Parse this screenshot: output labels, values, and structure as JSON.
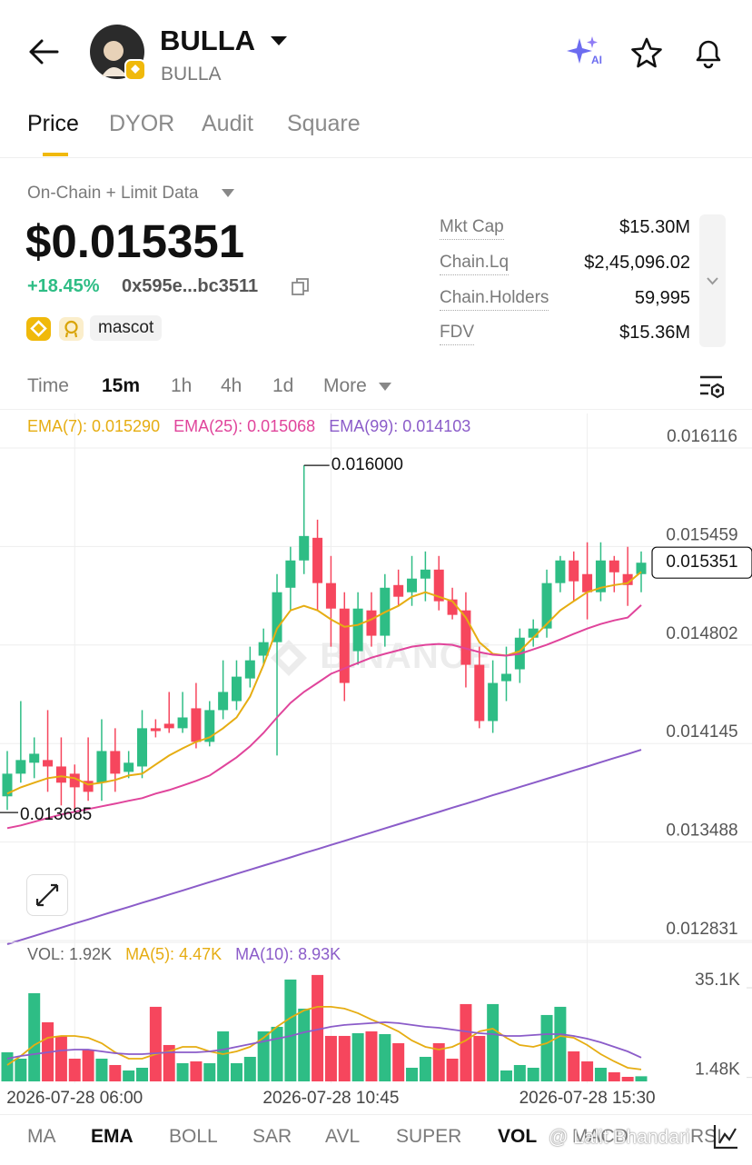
{
  "header": {
    "title": "BULLA",
    "subtitle": "BULLA"
  },
  "tabs": [
    "Price",
    "DYOR",
    "Audit",
    "Square"
  ],
  "source": "On-Chain + Limit Data",
  "price": "$0.015351",
  "change": "+18.45%",
  "address": "0x595e...bc3511",
  "tag": "mascot",
  "stats": [
    {
      "label": "Mkt Cap",
      "value": "$15.30M"
    },
    {
      "label": "Chain.Lq",
      "value": "$2,45,096.02"
    },
    {
      "label": "Chain.Holders",
      "value": "59,995"
    },
    {
      "label": "FDV",
      "value": "$15.36M"
    }
  ],
  "intervals": [
    "Time",
    "15m",
    "1h",
    "4h",
    "1d",
    "More"
  ],
  "indicators": [
    "MA",
    "EMA",
    "BOLL",
    "SAR",
    "AVL",
    "SUPER",
    "VOL",
    "MACD",
    "RSI"
  ],
  "watermark": "BINANCE",
  "credit": "@ Lalit Bhandari",
  "chart_data": [
    {
      "type": "candlestick",
      "up_color": "#2ebd85",
      "down_color": "#f6465d",
      "categories": [
        null,
        null,
        null,
        null,
        null,
        "2026-07-28 06:00",
        null,
        null,
        null,
        null,
        null,
        null,
        null,
        null,
        null,
        null,
        null,
        null,
        null,
        null,
        null,
        null,
        null,
        null,
        "2026-07-28 10:45",
        null,
        null,
        null,
        null,
        null,
        null,
        null,
        null,
        null,
        null,
        null,
        null,
        null,
        null,
        null,
        null,
        null,
        null,
        "2026-07-28 15:30",
        null,
        null,
        null,
        null
      ],
      "open": [
        0.013793,
        0.013944,
        0.014017,
        0.014035,
        0.013992,
        0.013944,
        0.013896,
        0.013884,
        0.014095,
        0.013956,
        0.013992,
        0.014247,
        0.014277,
        0.014247,
        0.01438,
        0.014156,
        0.014368,
        0.014428,
        0.014579,
        0.014731,
        0.014821,
        0.015184,
        0.015366,
        0.015517,
        0.015215,
        0.015045,
        0.014761,
        0.015033,
        0.014864,
        0.015202,
        0.015154,
        0.015245,
        0.015305,
        0.015106,
        0.015033,
        0.01467,
        0.014295,
        0.014561,
        0.01464,
        0.014851,
        0.014912,
        0.015215,
        0.015366,
        0.015275,
        0.015154,
        0.015366,
        0.015275,
        0.015275
      ],
      "high": [
        0.014095,
        0.014428,
        0.014186,
        0.014368,
        0.014186,
        0.014005,
        0.014186,
        0.014307,
        0.014247,
        0.014095,
        0.014368,
        0.014307,
        0.014489,
        0.014489,
        0.014549,
        0.014428,
        0.0147,
        0.0147,
        0.014791,
        0.014912,
        0.015275,
        0.015457,
        0.016,
        0.015638,
        0.015396,
        0.015154,
        0.015154,
        0.015154,
        0.015275,
        0.015305,
        0.015396,
        0.015426,
        0.015396,
        0.015184,
        0.015154,
        0.014791,
        0.0147,
        0.014791,
        0.014912,
        0.014973,
        0.015305,
        0.015396,
        0.015426,
        0.015487,
        0.015487,
        0.015396,
        0.015457,
        0.015426
      ],
      "low": [
        0.013702,
        0.013884,
        0.013914,
        0.013823,
        0.013732,
        0.013685,
        0.013763,
        0.013763,
        0.013823,
        0.013914,
        0.013914,
        0.014186,
        0.014216,
        0.014216,
        0.014113,
        0.014126,
        0.014307,
        0.014368,
        0.014519,
        0.01467,
        0.014065,
        0.015033,
        0.015275,
        0.015033,
        0.014791,
        0.014428,
        0.01467,
        0.014791,
        0.014791,
        0.015063,
        0.015063,
        0.015094,
        0.015033,
        0.014973,
        0.014519,
        0.014247,
        0.014216,
        0.014428,
        0.014549,
        0.014791,
        0.014851,
        0.015154,
        0.015094,
        0.014973,
        0.015094,
        0.015154,
        0.015063,
        0.015154
      ],
      "close": [
        0.013944,
        0.014035,
        0.014077,
        0.013992,
        0.013884,
        0.013853,
        0.013823,
        0.014095,
        0.013944,
        0.014017,
        0.014247,
        0.014228,
        0.014247,
        0.014319,
        0.014156,
        0.014368,
        0.014489,
        0.014591,
        0.0147,
        0.014821,
        0.015154,
        0.015366,
        0.015529,
        0.015215,
        0.015045,
        0.014549,
        0.015045,
        0.014864,
        0.015184,
        0.015124,
        0.015245,
        0.015305,
        0.015094,
        0.015003,
        0.01467,
        0.014295,
        0.014549,
        0.01461,
        0.014851,
        0.014912,
        0.015215,
        0.015366,
        0.015227,
        0.015154,
        0.015366,
        0.015287,
        0.015202,
        0.015351
      ],
      "series": [
        {
          "name": "EMA(7): 0.015290",
          "color": "#e6ad12",
          "values": [
            0.013811,
            0.013853,
            0.013884,
            0.013914,
            0.013926,
            0.013914,
            0.013871,
            0.013884,
            0.013902,
            0.013932,
            0.013944,
            0.014005,
            0.014065,
            0.014113,
            0.014156,
            0.014186,
            0.014247,
            0.014319,
            0.014458,
            0.01467,
            0.014912,
            0.015033,
            0.015063,
            0.015033,
            0.014973,
            0.014924,
            0.014936,
            0.014973,
            0.015021,
            0.015063,
            0.015124,
            0.015154,
            0.015124,
            0.015094,
            0.014985,
            0.014821,
            0.014743,
            0.014731,
            0.014761,
            0.014851,
            0.014942,
            0.015033,
            0.015094,
            0.015154,
            0.015184,
            0.015202,
            0.015215,
            0.01529
          ]
        },
        {
          "name": "EMA(25): 0.015068",
          "color": "#e0449b",
          "values": [
            0.013581,
            0.013599,
            0.013623,
            0.013648,
            0.013672,
            0.01369,
            0.013708,
            0.013726,
            0.013744,
            0.013763,
            0.013781,
            0.013811,
            0.013835,
            0.013865,
            0.013896,
            0.013932,
            0.013992,
            0.014053,
            0.014126,
            0.014216,
            0.014319,
            0.014416,
            0.014489,
            0.014549,
            0.01461,
            0.014646,
            0.014682,
            0.014718,
            0.014743,
            0.014767,
            0.014791,
            0.014803,
            0.014809,
            0.014803,
            0.014779,
            0.014755,
            0.014737,
            0.014731,
            0.014743,
            0.014773,
            0.014803,
            0.014839,
            0.014876,
            0.014912,
            0.014942,
            0.014966,
            0.014985,
            0.015068
          ]
        },
        {
          "name": "EMA(99): 0.014103",
          "color": "#8b5cc9",
          "values": [
            0.012807,
            0.012835,
            0.012862,
            0.01289,
            0.012917,
            0.012945,
            0.012972,
            0.013,
            0.013028,
            0.013055,
            0.013083,
            0.01311,
            0.013138,
            0.013165,
            0.013193,
            0.013221,
            0.013248,
            0.013276,
            0.013303,
            0.013331,
            0.013358,
            0.013386,
            0.013414,
            0.013441,
            0.013469,
            0.013496,
            0.013524,
            0.013551,
            0.013579,
            0.013607,
            0.013634,
            0.013662,
            0.013689,
            0.013717,
            0.013744,
            0.013772,
            0.0138,
            0.013827,
            0.013855,
            0.013882,
            0.01391,
            0.013937,
            0.013965,
            0.013992,
            0.01402,
            0.014048,
            0.014075,
            0.014103
          ]
        }
      ],
      "max_marker": {
        "value": 0.016,
        "label": "0.016000"
      },
      "min_marker": 0.013685,
      "last_price": 0.015351,
      "ylim": [
        0.012813,
        0.016328
      ],
      "yticks": [
        0.016116,
        0.015459,
        0.014802,
        0.014145,
        0.013488,
        0.012831
      ],
      "grid": true
    },
    {
      "type": "bar",
      "name": "VOL: 1.92K",
      "values": [
        10912,
        8525,
        33077,
        22165,
        17050,
        8525,
        11935,
        8525,
        6138,
        4092,
        5115,
        27962,
        13640,
        6820,
        7502,
        6820,
        18755,
        6820,
        9207,
        18755,
        20460,
        38192,
        27280,
        39897,
        17050,
        17050,
        18073,
        18755,
        17732,
        14322,
        5115,
        9207,
        14322,
        8525,
        28985,
        17050,
        28985,
        4092,
        6138,
        5115,
        24893,
        27962,
        11253,
        7502,
        5115,
        3410,
        1705,
        1920
      ],
      "series": [
        {
          "name": "MA(5): 4.47K",
          "color": "#e6ad12",
          "values": [
            6138,
            9548,
            13640,
            16368,
            17050,
            17050,
            16368,
            14322,
            10912,
            8525,
            8525,
            10230,
            11253,
            12958,
            12958,
            11253,
            10230,
            11253,
            12958,
            16368,
            20460,
            23870,
            26598,
            27962,
            27962,
            27280,
            25575,
            23188,
            21142,
            18755,
            15345,
            12958,
            11935,
            12958,
            15345,
            18755,
            19778,
            16368,
            13640,
            12958,
            14322,
            17050,
            16368,
            13640,
            10230,
            7502,
            5115,
            4470
          ]
        },
        {
          "name": "MA(10): 8.93K",
          "color": "#8b5cc9",
          "values": [
            8525,
            9548,
            10230,
            10912,
            11594,
            11935,
            11935,
            11253,
            10571,
            10230,
            10230,
            10571,
            10912,
            10912,
            10912,
            11253,
            11935,
            12958,
            13981,
            15004,
            16027,
            17050,
            18414,
            19437,
            20460,
            21142,
            21483,
            21824,
            22165,
            21824,
            21142,
            20460,
            20119,
            19437,
            18755,
            18073,
            17732,
            17050,
            17050,
            17391,
            17732,
            17732,
            17050,
            16027,
            14663,
            12958,
            11253,
            8930
          ]
        }
      ],
      "ylim": [
        0,
        40000
      ],
      "yticks": [
        {
          "value": 35100,
          "label": "35.1K"
        },
        {
          "value": 1480,
          "label": "1.48K"
        }
      ]
    }
  ]
}
